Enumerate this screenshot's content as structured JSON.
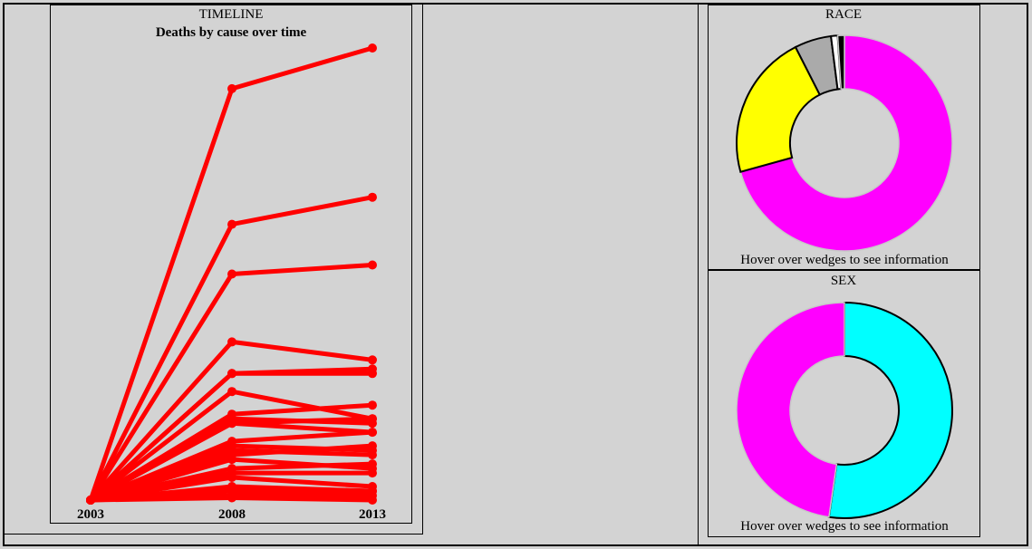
{
  "timeline": {
    "header": "TIMELINE",
    "subtitle": "Deaths by cause over time"
  },
  "race_panel": {
    "header": "RACE",
    "hint": "Hover over wedges to see information"
  },
  "sex_panel": {
    "header": "SEX",
    "hint": "Hover over wedges to see information"
  },
  "chart_data": [
    {
      "type": "line",
      "title": "Deaths by cause over time",
      "x": [
        "2003",
        "2008",
        "2013"
      ],
      "ylim": [
        0,
        100
      ],
      "grid": false,
      "color": "#ff0000",
      "series": [
        {
          "values": [
            0,
            91,
            100
          ]
        },
        {
          "values": [
            0,
            61,
            67
          ]
        },
        {
          "values": [
            0,
            50,
            52
          ]
        },
        {
          "values": [
            0,
            35,
            31
          ]
        },
        {
          "values": [
            0,
            28,
            29
          ]
        },
        {
          "values": [
            0,
            28,
            28
          ]
        },
        {
          "values": [
            0,
            24,
            18
          ]
        },
        {
          "values": [
            0,
            19,
            21
          ]
        },
        {
          "values": [
            0,
            18,
            17
          ]
        },
        {
          "values": [
            0,
            17,
            15
          ]
        },
        {
          "values": [
            0,
            17,
            18
          ]
        },
        {
          "values": [
            0,
            13,
            15
          ]
        },
        {
          "values": [
            0,
            12,
            11
          ]
        },
        {
          "values": [
            0,
            11,
            10
          ]
        },
        {
          "values": [
            0,
            10,
            12
          ]
        },
        {
          "values": [
            0,
            9,
            7
          ]
        },
        {
          "values": [
            0,
            7,
            8
          ]
        },
        {
          "values": [
            0,
            6,
            6
          ]
        },
        {
          "values": [
            0,
            5,
            3
          ]
        },
        {
          "values": [
            0,
            3,
            2
          ]
        },
        {
          "values": [
            0,
            2,
            2
          ]
        },
        {
          "values": [
            0,
            1,
            1
          ]
        },
        {
          "values": [
            0,
            0.5,
            0
          ]
        }
      ]
    },
    {
      "type": "pie",
      "title": "RACE",
      "donut": true,
      "slices": [
        {
          "value": 70.7,
          "color": "#ff00ff"
        },
        {
          "value": 21.8,
          "color": "#ffff00"
        },
        {
          "value": 5.5,
          "color": "#aaaaaa"
        },
        {
          "value": 1.0,
          "color": "#ffffff"
        },
        {
          "value": 1.0,
          "color": "#000000"
        }
      ]
    },
    {
      "type": "pie",
      "title": "SEX",
      "donut": true,
      "slices": [
        {
          "value": 52.3,
          "color": "#00ffff"
        },
        {
          "value": 47.7,
          "color": "#ff00ff"
        }
      ]
    }
  ]
}
